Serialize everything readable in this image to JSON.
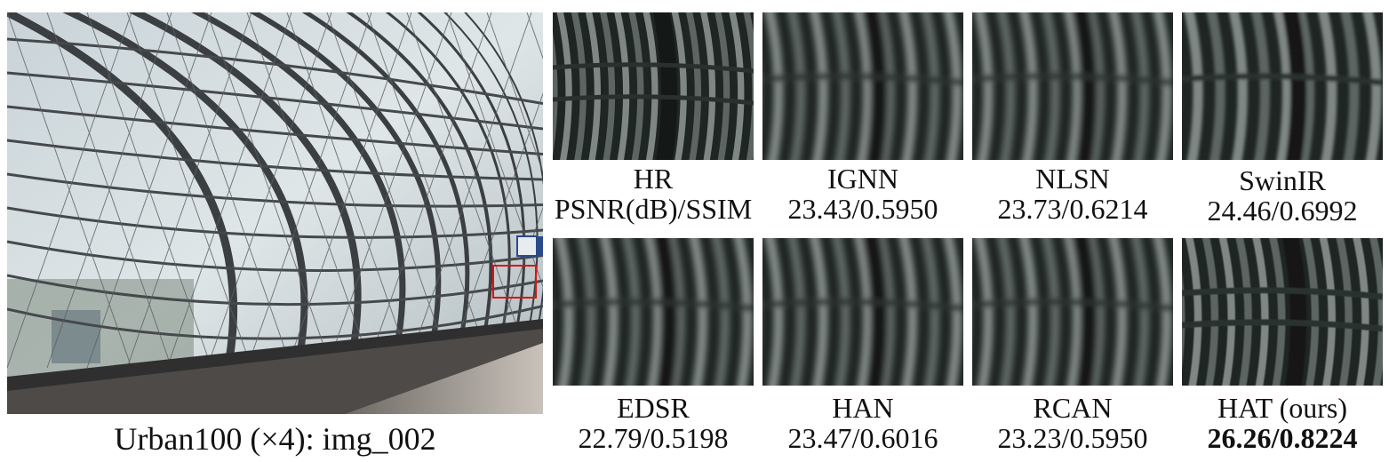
{
  "figure": {
    "main_image": {
      "caption": "Urban100 (×4): img_002",
      "highlight_box_color": "#e01010"
    },
    "methods": [
      {
        "name": "HR",
        "score": "PSNR(dB)/SSIM",
        "best": false,
        "sharpness": "hr"
      },
      {
        "name": "IGNN",
        "score": "23.43/0.5950",
        "best": false,
        "sharpness": "blur"
      },
      {
        "name": "NLSN",
        "score": "23.73/0.6214",
        "best": false,
        "sharpness": "blur"
      },
      {
        "name": "SwinIR",
        "score": "24.46/0.6992",
        "best": false,
        "sharpness": "medium"
      },
      {
        "name": "EDSR",
        "score": "22.79/0.5198",
        "best": false,
        "sharpness": "blur"
      },
      {
        "name": "HAN",
        "score": "23.47/0.6016",
        "best": false,
        "sharpness": "blur"
      },
      {
        "name": "RCAN",
        "score": "23.23/0.5950",
        "best": false,
        "sharpness": "blur"
      },
      {
        "name": "HAT (ours)",
        "score": "26.26/0.8224",
        "best": true,
        "sharpness": "sharp"
      }
    ]
  }
}
